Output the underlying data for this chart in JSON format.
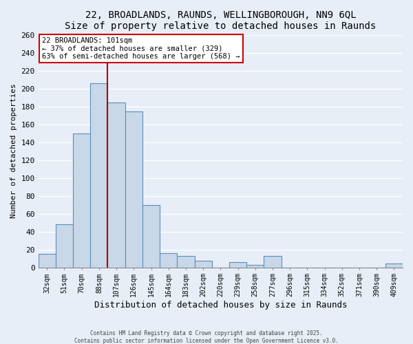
{
  "title": "22, BROADLANDS, RAUNDS, WELLINGBOROUGH, NN9 6QL",
  "subtitle": "Size of property relative to detached houses in Raunds",
  "xlabel": "Distribution of detached houses by size in Raunds",
  "ylabel": "Number of detached properties",
  "bar_color": "#c8d8e8",
  "bar_edge_color": "#5b8db8",
  "background_color": "#e8eef8",
  "categories": [
    "32sqm",
    "51sqm",
    "70sqm",
    "88sqm",
    "107sqm",
    "126sqm",
    "145sqm",
    "164sqm",
    "183sqm",
    "202sqm",
    "220sqm",
    "239sqm",
    "258sqm",
    "277sqm",
    "296sqm",
    "315sqm",
    "334sqm",
    "352sqm",
    "371sqm",
    "390sqm",
    "409sqm"
  ],
  "values": [
    15,
    48,
    150,
    206,
    184,
    174,
    70,
    16,
    13,
    7,
    0,
    6,
    3,
    13,
    0,
    0,
    0,
    0,
    0,
    0,
    4
  ],
  "vline_color": "#aa0000",
  "annotation_title": "22 BROADLANDS: 101sqm",
  "annotation_line1": "← 37% of detached houses are smaller (329)",
  "annotation_line2": "63% of semi-detached houses are larger (568) →",
  "annotation_box_color": "#ffffff",
  "annotation_box_edge_color": "#cc0000",
  "ylim": [
    0,
    260
  ],
  "yticks": [
    0,
    20,
    40,
    60,
    80,
    100,
    120,
    140,
    160,
    180,
    200,
    220,
    240,
    260
  ],
  "footer1": "Contains HM Land Registry data © Crown copyright and database right 2025.",
  "footer2": "Contains public sector information licensed under the Open Government Licence v3.0.",
  "grid_color": "#ffffff",
  "vline_bar_index": 4
}
